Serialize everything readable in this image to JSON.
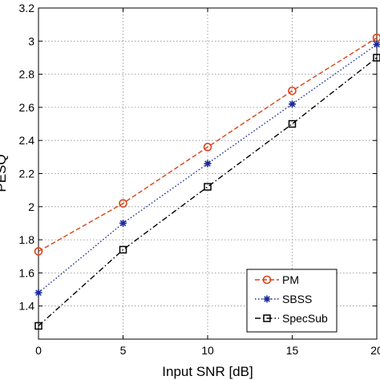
{
  "chart_data": {
    "type": "line",
    "title": "",
    "xlabel": "Input SNR [dB]",
    "ylabel": "PESQ",
    "xlim": [
      0,
      20
    ],
    "ylim": [
      1.2,
      3.2
    ],
    "xticks": [
      0,
      5,
      10,
      15,
      20
    ],
    "xtick_labels": [
      "0",
      "5",
      "10",
      "15",
      "20"
    ],
    "yticks": [
      1.4,
      1.6,
      1.8,
      2.0,
      2.2,
      2.4,
      2.6,
      2.8,
      3.0,
      3.2
    ],
    "ytick_labels": [
      "1.4",
      "1.6",
      "1.8",
      "2",
      "2.2",
      "2.4",
      "2.6",
      "2.8",
      "3",
      "3.2"
    ],
    "grid": true,
    "legend_position": "bottom-right",
    "x": [
      0,
      5,
      10,
      15,
      20
    ],
    "series": [
      {
        "name": "PM",
        "values": [
          1.73,
          2.02,
          2.36,
          2.7,
          3.02
        ],
        "color": "#d9441a",
        "marker": "circle",
        "dash": "dashed"
      },
      {
        "name": "SBSS",
        "values": [
          1.48,
          1.9,
          2.26,
          2.62,
          2.98
        ],
        "color": "#1a2a9a",
        "marker": "asterisk",
        "dash": "dotted"
      },
      {
        "name": "SpecSub",
        "values": [
          1.28,
          1.74,
          2.12,
          2.5,
          2.9
        ],
        "color": "#000000",
        "marker": "square",
        "dash": "dashdot"
      }
    ]
  }
}
